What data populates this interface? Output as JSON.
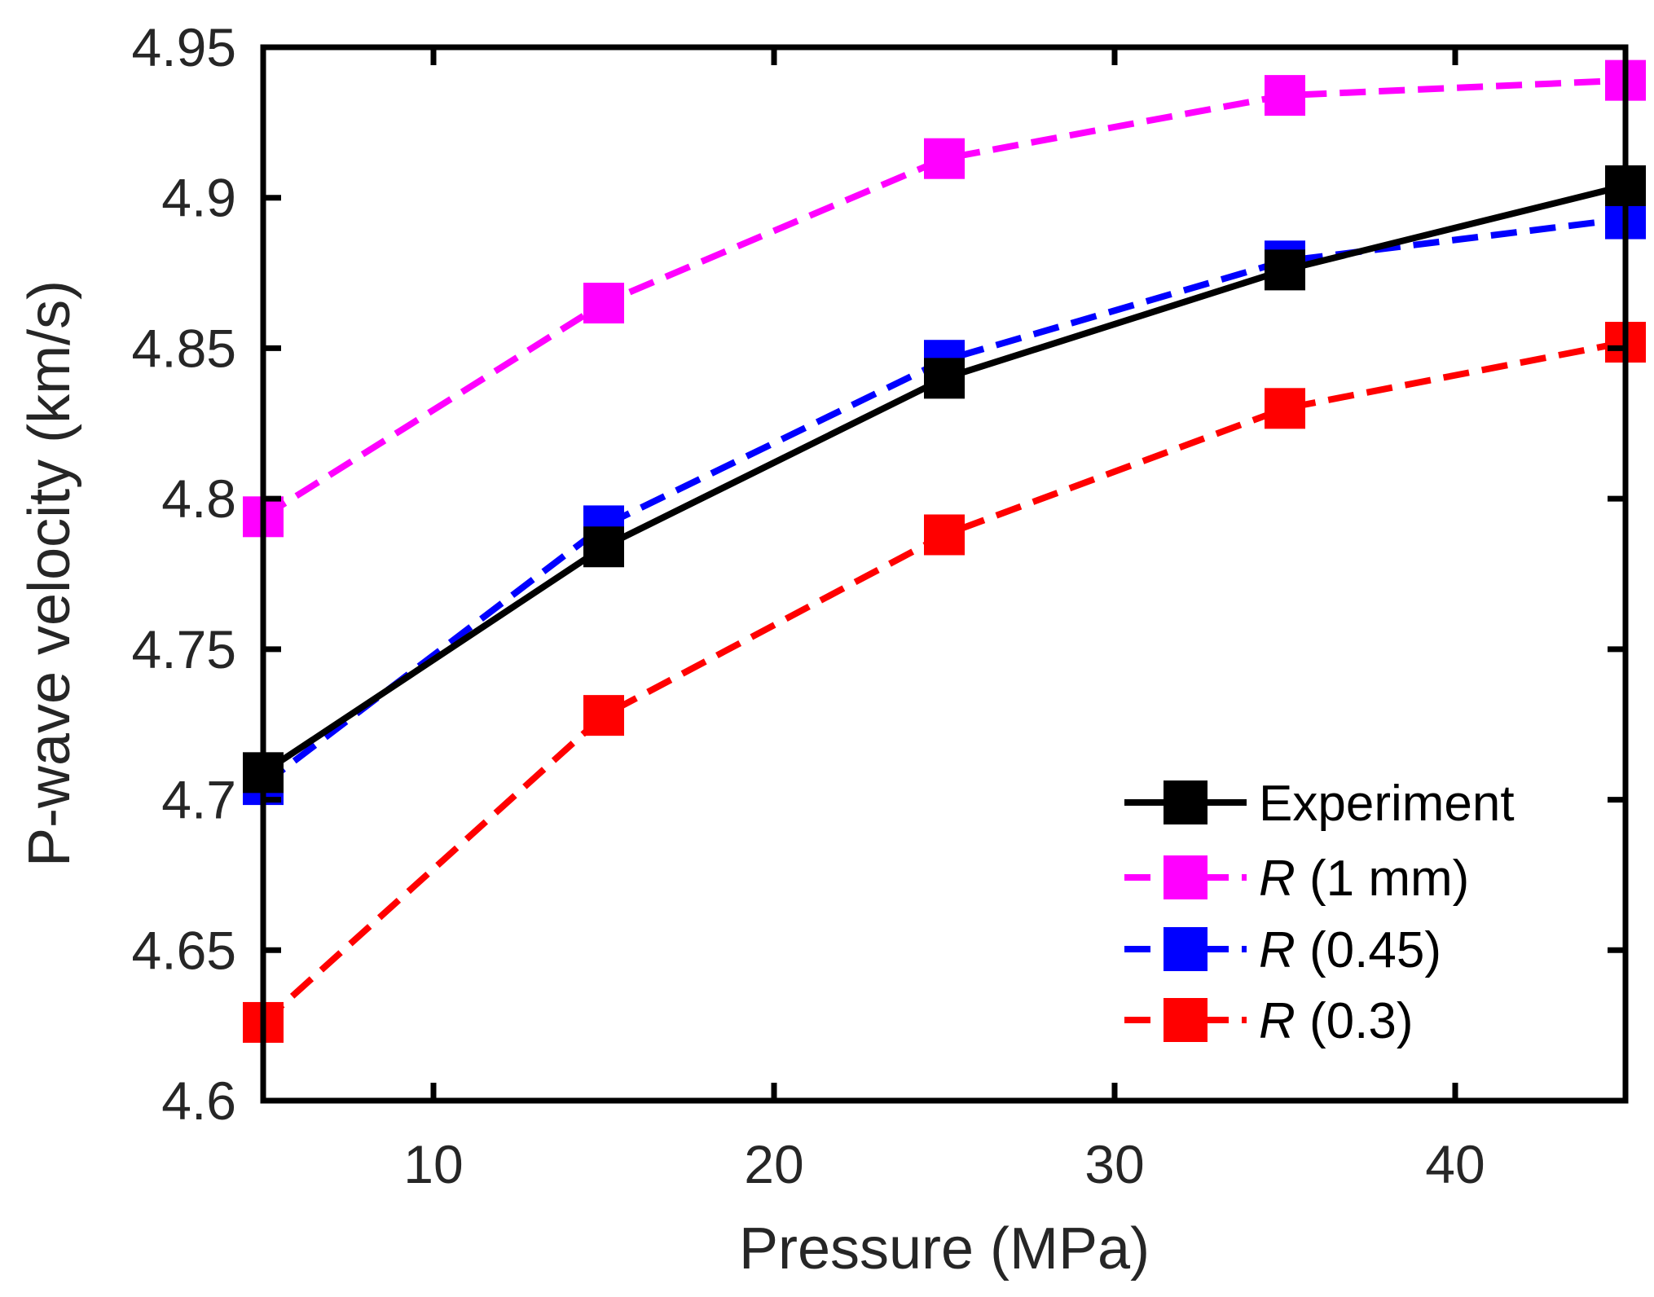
{
  "chart_data": {
    "type": "line",
    "title": "",
    "xlabel": "Pressure (MPa)",
    "ylabel": "P-wave velocity (km/s)",
    "xlim": [
      5,
      45
    ],
    "ylim": [
      4.6,
      4.95
    ],
    "xticks": [
      10,
      20,
      30,
      40
    ],
    "xtick_labels": [
      "10",
      "20",
      "30",
      "40"
    ],
    "yticks": [
      4.6,
      4.65,
      4.7,
      4.75,
      4.8,
      4.85,
      4.9,
      4.95
    ],
    "ytick_labels": [
      "4.6",
      "4.65",
      "4.7",
      "4.75",
      "4.8",
      "4.85",
      "4.9",
      "4.95"
    ],
    "grid": false,
    "legend_position": "bottom-right",
    "x": [
      5,
      15,
      25,
      35,
      45
    ],
    "series": [
      {
        "name": "Experiment",
        "legend_italic": "",
        "legend_rest": "Experiment",
        "color": "#000000",
        "dash": "solid",
        "values": [
          4.709,
          4.784,
          4.84,
          4.876,
          4.904
        ]
      },
      {
        "name": "R (1 mm)",
        "legend_italic": "R",
        "legend_rest": " (1 mm)",
        "color": "#FF00FF",
        "dash": "dashed",
        "values": [
          4.794,
          4.865,
          4.913,
          4.934,
          4.939
        ]
      },
      {
        "name": "R (0.45)",
        "legend_italic": "R",
        "legend_rest": " (0.45)",
        "color": "#0000FF",
        "dash": "dashed",
        "values": [
          4.705,
          4.791,
          4.846,
          4.879,
          4.893
        ]
      },
      {
        "name": "R (0.3)",
        "legend_italic": "R",
        "legend_rest": " (0.3)",
        "color": "#FF0000",
        "dash": "dashed",
        "values": [
          4.626,
          4.728,
          4.788,
          4.83,
          4.852
        ]
      }
    ]
  }
}
